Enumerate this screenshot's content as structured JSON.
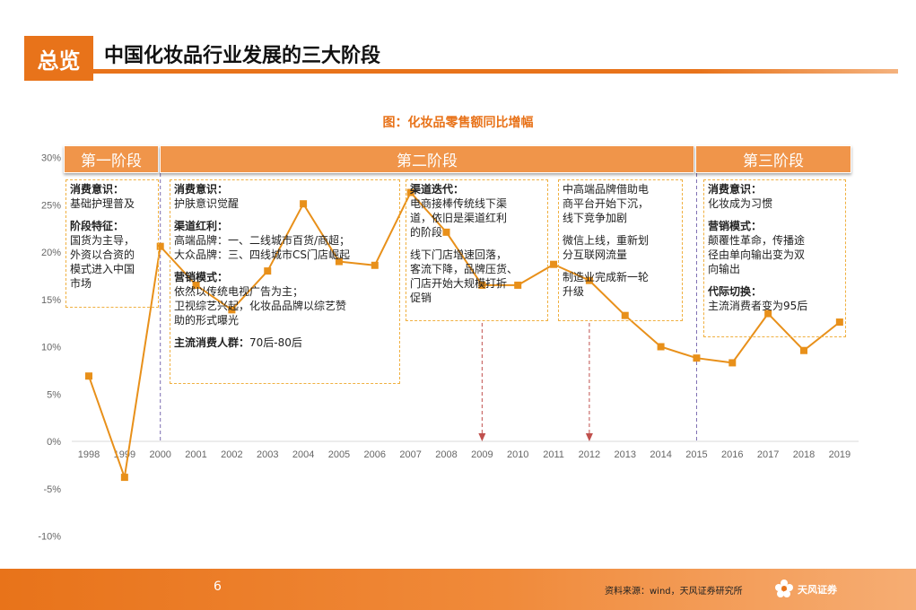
{
  "header": {
    "badge": "总览",
    "title": "中国化妆品行业发展的三大阶段"
  },
  "chart_data": {
    "type": "line",
    "title": "图：化妆品零售额同比增幅",
    "xlabel": "",
    "ylabel": "",
    "x": [
      "1998",
      "1999",
      "2000",
      "2001",
      "2002",
      "2003",
      "2004",
      "2005",
      "2006",
      "2007",
      "2008",
      "2009",
      "2010",
      "2011",
      "2012",
      "2013",
      "2014",
      "2015",
      "2016",
      "2017",
      "2018",
      "2019"
    ],
    "series": [
      {
        "values": [
          6.9,
          -3.8,
          20.6,
          16.5,
          13.9,
          18.0,
          25.1,
          19.0,
          18.6,
          26.3,
          22.1,
          16.5,
          16.5,
          18.7,
          17.0,
          13.3,
          10.0,
          8.8,
          8.3,
          13.5,
          9.6,
          12.6
        ]
      }
    ],
    "yticks": [
      "30%",
      "25%",
      "20%",
      "15%",
      "10%",
      "5%",
      "0%",
      "-5%",
      "-10%"
    ],
    "ylim": [
      -10,
      30
    ],
    "color": "#e8901a",
    "grid": false
  },
  "stages": [
    {
      "label": "第一阶段"
    },
    {
      "label": "第二阶段"
    },
    {
      "label": "第三阶段"
    }
  ],
  "boxes": {
    "b1": [
      "消费意识：",
      "基础护理普及",
      "",
      "阶段特征：",
      "国货为主导，",
      "外资以合资的",
      "模式进入中国",
      "市场"
    ],
    "b2": [
      "消费意识：",
      "护肤意识觉醒",
      "",
      "渠道红利：",
      "高端品牌：一、二线城市百货/商超；",
      "大众品牌：三、四线城市CS门店崛起",
      "",
      "营销模式：",
      "依然以传统电视广告为主；",
      "卫视综艺兴起，化妆品品牌以综艺赞",
      "助的形式曝光",
      "",
      "主流消费人群：70后-80后"
    ],
    "b3": [
      "渠道迭代：",
      "电商接棒传统线下渠",
      "道，依旧是渠道红利",
      "的阶段",
      "",
      "线下门店增速回落，",
      "客流下降，品牌压货、",
      "门店开始大规模打折",
      "促销"
    ],
    "b4": [
      "中高端品牌借助电",
      "商平台开始下沉，",
      "线下竞争加剧",
      "",
      "微信上线，重新划",
      "分互联网流量",
      "",
      "制造业完成新一轮",
      "升级"
    ],
    "b5": [
      "消费意识：",
      "化妆成为习惯",
      "",
      "营销模式：",
      "颠覆性革命，传播途",
      "径由单向输出变为双",
      "向输出",
      "",
      "代际切换：",
      "主流消费者变为95后"
    ]
  },
  "footer": {
    "page": "6",
    "source": "资料来源：wind，天风证券研究所",
    "logo": "天风证券"
  }
}
